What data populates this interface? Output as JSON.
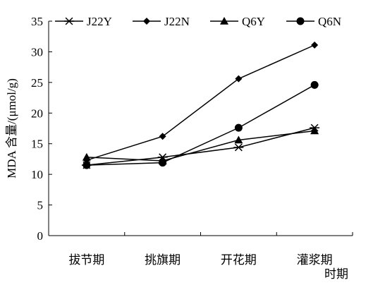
{
  "chart_data": {
    "type": "line",
    "title": "",
    "xlabel": "时期",
    "ylabel": "MDA 含量/(μmol/g)",
    "categories": [
      "拔节期",
      "挑旗期",
      "开花期",
      "灌浆期"
    ],
    "ylim": [
      0,
      35
    ],
    "yticks": [
      0,
      5,
      10,
      15,
      20,
      25,
      30,
      35
    ],
    "grid": false,
    "legend_position": "top",
    "series": [
      {
        "name": "J22Y",
        "marker": "asterisk",
        "values": [
          11.5,
          12.8,
          14.4,
          17.6
        ]
      },
      {
        "name": "J22N",
        "marker": "diamond",
        "values": [
          12.3,
          16.2,
          25.6,
          31.1
        ]
      },
      {
        "name": "Q6Y",
        "marker": "triangle",
        "values": [
          12.8,
          12.2,
          15.6,
          17.1
        ]
      },
      {
        "name": "Q6N",
        "marker": "circle",
        "values": [
          11.5,
          11.9,
          17.6,
          24.6
        ]
      }
    ]
  }
}
